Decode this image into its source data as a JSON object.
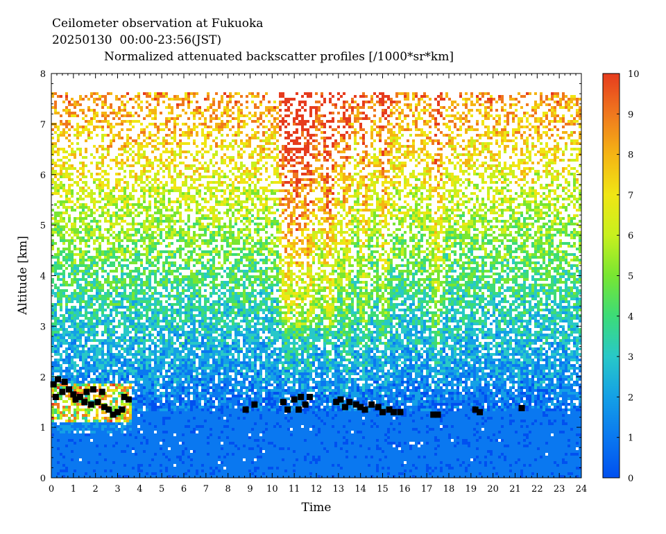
{
  "chart_data": {
    "type": "heatmap",
    "title": "Ceilometer observation at Fukuoka",
    "subtitle": "20250130  00:00-23:56(JST)",
    "colorbar_title": "Normalized attenuated backscatter profiles [/1000*sr*km]",
    "xlabel": "Time",
    "ylabel": "Altitude [km]",
    "xlim": [
      0,
      24
    ],
    "ylim": [
      0,
      8
    ],
    "x_ticks": [
      "0",
      "1",
      "2",
      "3",
      "4",
      "5",
      "6",
      "7",
      "8",
      "9",
      "10",
      "11",
      "12",
      "13",
      "14",
      "15",
      "16",
      "17",
      "18",
      "19",
      "20",
      "21",
      "22",
      "23",
      "24"
    ],
    "y_ticks": [
      "0",
      "1",
      "2",
      "3",
      "4",
      "5",
      "6",
      "7",
      "8"
    ],
    "colorbar_range": [
      0,
      10
    ],
    "colorbar_ticks": [
      "0",
      "1",
      "2",
      "3",
      "4",
      "5",
      "6",
      "7",
      "8",
      "9",
      "10"
    ],
    "colorscale": [
      "#0050f0",
      "#0a78f0",
      "#14a0e6",
      "#28c8c8",
      "#3cdc78",
      "#78e632",
      "#c8f01e",
      "#f0e614",
      "#f5b414",
      "#f0781e",
      "#e63c1e"
    ],
    "data_top_km": 7.65,
    "boundary_layer_top_km": 1.35,
    "vertical_plumes_hours": [
      10.6,
      11.1,
      11.6,
      12.5,
      13.3,
      14.1,
      15.0,
      17.4
    ],
    "cloud_base_markers": [
      {
        "time": 0.1,
        "alt": 1.85
      },
      {
        "time": 0.2,
        "alt": 1.6
      },
      {
        "time": 0.3,
        "alt": 1.95
      },
      {
        "time": 0.5,
        "alt": 1.7
      },
      {
        "time": 0.6,
        "alt": 1.9
      },
      {
        "time": 0.8,
        "alt": 1.75
      },
      {
        "time": 1.0,
        "alt": 1.65
      },
      {
        "time": 1.1,
        "alt": 1.55
      },
      {
        "time": 1.3,
        "alt": 1.6
      },
      {
        "time": 1.5,
        "alt": 1.5
      },
      {
        "time": 1.6,
        "alt": 1.7
      },
      {
        "time": 1.8,
        "alt": 1.45
      },
      {
        "time": 1.9,
        "alt": 1.75
      },
      {
        "time": 2.1,
        "alt": 1.5
      },
      {
        "time": 2.3,
        "alt": 1.7
      },
      {
        "time": 2.4,
        "alt": 1.4
      },
      {
        "time": 2.6,
        "alt": 1.35
      },
      {
        "time": 2.8,
        "alt": 1.25
      },
      {
        "time": 3.0,
        "alt": 1.3
      },
      {
        "time": 3.2,
        "alt": 1.35
      },
      {
        "time": 3.3,
        "alt": 1.6
      },
      {
        "time": 3.5,
        "alt": 1.55
      },
      {
        "time": 8.8,
        "alt": 1.35
      },
      {
        "time": 9.2,
        "alt": 1.45
      },
      {
        "time": 10.5,
        "alt": 1.5
      },
      {
        "time": 10.7,
        "alt": 1.35
      },
      {
        "time": 11.0,
        "alt": 1.55
      },
      {
        "time": 11.2,
        "alt": 1.35
      },
      {
        "time": 11.3,
        "alt": 1.6
      },
      {
        "time": 11.5,
        "alt": 1.45
      },
      {
        "time": 11.7,
        "alt": 1.6
      },
      {
        "time": 12.9,
        "alt": 1.5
      },
      {
        "time": 13.1,
        "alt": 1.55
      },
      {
        "time": 13.3,
        "alt": 1.4
      },
      {
        "time": 13.5,
        "alt": 1.5
      },
      {
        "time": 13.8,
        "alt": 1.45
      },
      {
        "time": 14.0,
        "alt": 1.4
      },
      {
        "time": 14.2,
        "alt": 1.35
      },
      {
        "time": 14.5,
        "alt": 1.45
      },
      {
        "time": 14.8,
        "alt": 1.4
      },
      {
        "time": 15.0,
        "alt": 1.3
      },
      {
        "time": 15.3,
        "alt": 1.35
      },
      {
        "time": 15.5,
        "alt": 1.3
      },
      {
        "time": 15.8,
        "alt": 1.3
      },
      {
        "time": 17.3,
        "alt": 1.25
      },
      {
        "time": 17.5,
        "alt": 1.25
      },
      {
        "time": 19.2,
        "alt": 1.35
      },
      {
        "time": 19.4,
        "alt": 1.3
      },
      {
        "time": 21.3,
        "alt": 1.38
      }
    ]
  }
}
